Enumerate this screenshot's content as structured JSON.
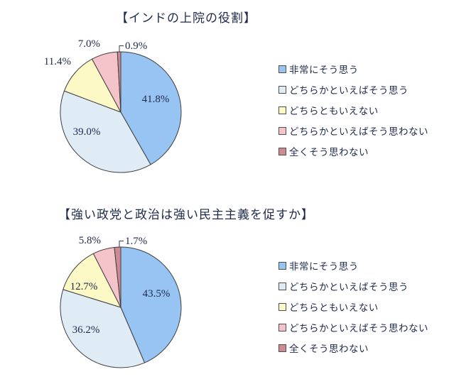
{
  "page": {
    "background_color": "#ffffff",
    "text_color": "#1e2a4a",
    "outline_color": "#3f3f3f"
  },
  "chart_data": [
    {
      "type": "pie",
      "title": "【インドの上院の役割】",
      "categories": [
        "非常にそう思う",
        "どちらかといえばそう思う",
        "どちらともいえない",
        "どちらかといえばそう思わない",
        "全くそう思わない"
      ],
      "values": [
        41.8,
        39.0,
        11.4,
        7.0,
        0.9
      ],
      "labels": [
        "41.8%",
        "39.0%",
        "11.4%",
        "7.0%",
        "0.9%"
      ],
      "colors": [
        "#97C4F2",
        "#DFECF6",
        "#FCF9C6",
        "#F5C4CA",
        "#CD8A92"
      ],
      "label_placement": [
        "inside",
        "inside",
        "outside",
        "outside",
        "outside-leader"
      ],
      "start_angle_deg": 0,
      "direction": "clockwise",
      "legend_position": "right",
      "grid": false
    },
    {
      "type": "pie",
      "title": "【強い政党と政治は強い民主主義を促すか】",
      "categories": [
        "非常にそう思う",
        "どちらかといえばそう思う",
        "どちらともいえない",
        "どちらかといえばそう思わない",
        "全くそう思わない"
      ],
      "values": [
        43.5,
        36.2,
        12.7,
        5.8,
        1.7
      ],
      "labels": [
        "43.5%",
        "36.2%",
        "12.7%",
        "5.8%",
        "1.7%"
      ],
      "colors": [
        "#97C4F2",
        "#DFECF6",
        "#FCF9C6",
        "#F5C4CA",
        "#CD8A92"
      ],
      "label_placement": [
        "inside",
        "inside",
        "inside",
        "outside",
        "outside-leader"
      ],
      "start_angle_deg": 0,
      "direction": "clockwise",
      "legend_position": "right",
      "grid": false
    }
  ]
}
